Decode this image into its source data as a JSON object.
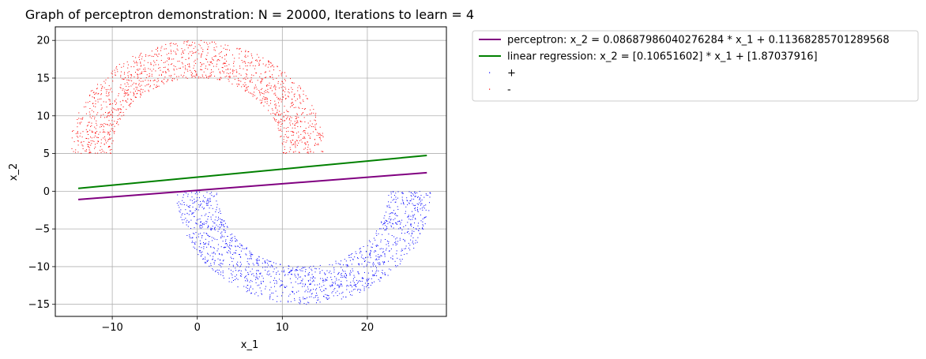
{
  "chart_data": {
    "type": "scatter",
    "title": "Graph of perceptron demonstration: N = 20000, Iterations to learn = 4",
    "xlabel": "x_1",
    "ylabel": "x_2",
    "xlim": [
      -16.7,
      29.3
    ],
    "ylim": [
      -16.6,
      21.8
    ],
    "grid": true,
    "legend_position": "outside right",
    "x_ticks": [
      -10,
      0,
      10,
      20
    ],
    "x_tick_labels": [
      "−10",
      "0",
      "10",
      "20"
    ],
    "y_ticks": [
      -15,
      -10,
      -5,
      0,
      5,
      10,
      15,
      20
    ],
    "y_tick_labels": [
      "−15",
      "−10",
      "−5",
      "0",
      "5",
      "10",
      "15",
      "20"
    ],
    "lines": [
      {
        "name": "perceptron: x_2 = 0.08687986040276284 * x_1 + 0.11368285701289568",
        "slope": 0.08687986040276284,
        "intercept": 0.11368285701289568,
        "x_range": [
          -14,
          27
        ],
        "color": "#800080"
      },
      {
        "name": "linear regression: x_2 = [0.10651602] * x_1 + [1.87037916]",
        "slope": 0.10651602,
        "intercept": 1.87037916,
        "x_range": [
          -14,
          27
        ],
        "color": "#008000"
      }
    ],
    "scatter_series": [
      {
        "name": "+",
        "color": "#0000ff",
        "shape": "lower half ring",
        "center": [
          12.5,
          0
        ],
        "inner_radius": 10,
        "outer_radius": 15,
        "y_range": [
          -15,
          0
        ]
      },
      {
        "name": "-",
        "color": "#ff0000",
        "shape": "upper half ring",
        "center": [
          0,
          5
        ],
        "inner_radius": 10,
        "outer_radius": 15,
        "y_range": [
          5,
          20
        ]
      }
    ],
    "legend_entries": [
      {
        "label": "perceptron: x_2 = 0.08687986040276284 * x_1 + 0.11368285701289568",
        "kind": "line",
        "color": "#800080"
      },
      {
        "label": "linear regression: x_2 = [0.10651602] * x_1 + [1.87037916]",
        "kind": "line",
        "color": "#008000"
      },
      {
        "label": "+",
        "kind": "marker",
        "color": "#0000ff"
      },
      {
        "label": "-",
        "kind": "marker",
        "color": "#ff0000"
      }
    ]
  }
}
